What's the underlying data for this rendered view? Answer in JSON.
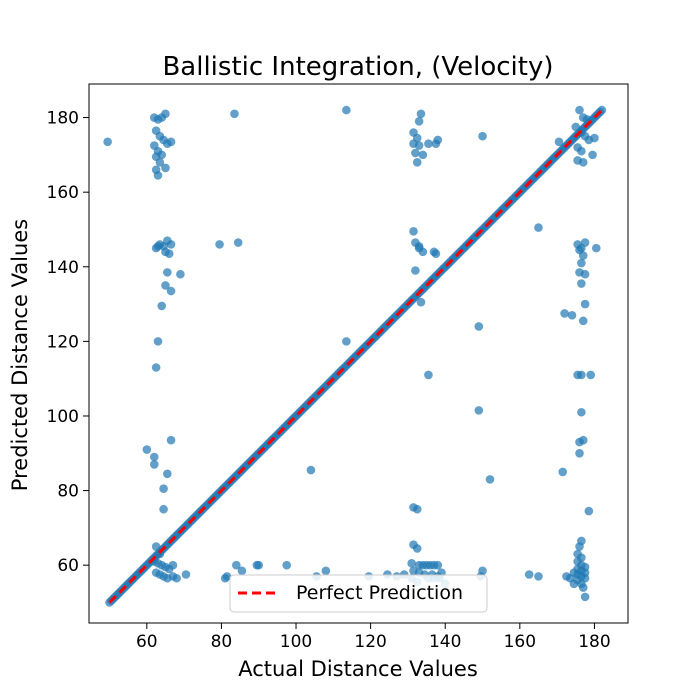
{
  "chart_data": {
    "type": "scatter",
    "title": "Ballistic Integration, (Velocity)",
    "xlabel": "Actual Distance Values",
    "ylabel": "Predicted Distance Values",
    "xlim": [
      44.5,
      189
    ],
    "ylim": [
      44.5,
      189
    ],
    "xticks": [
      60,
      80,
      100,
      120,
      140,
      160,
      180
    ],
    "yticks": [
      60,
      80,
      100,
      120,
      140,
      160,
      180
    ],
    "grid": false,
    "legend_position": "lower center",
    "point_color": "#1f77b4",
    "reference_line": {
      "name": "Perfect Prediction",
      "color": "#ff0000",
      "style": "dashed",
      "x": [
        50,
        182
      ],
      "y": [
        50,
        182
      ]
    },
    "diagonal_points": {
      "description_range": [
        50,
        182
      ],
      "step": 0.5
    },
    "points": [
      [
        49.5,
        173.5
      ],
      [
        62,
        180
      ],
      [
        63,
        179.5
      ],
      [
        64,
        180
      ],
      [
        65,
        181
      ],
      [
        62.5,
        176.5
      ],
      [
        63.5,
        175
      ],
      [
        64.5,
        174
      ],
      [
        65.5,
        173
      ],
      [
        66.5,
        173.5
      ],
      [
        62,
        172.5
      ],
      [
        63,
        171
      ],
      [
        64,
        170
      ],
      [
        62.5,
        169.5
      ],
      [
        63.5,
        168
      ],
      [
        62.5,
        166
      ],
      [
        63,
        164.5
      ],
      [
        65,
        166.5
      ],
      [
        62.5,
        145
      ],
      [
        63.5,
        146
      ],
      [
        64.5,
        145.5
      ],
      [
        65.5,
        147
      ],
      [
        66.5,
        146
      ],
      [
        65,
        144
      ],
      [
        66,
        143.5
      ],
      [
        63,
        145.5
      ],
      [
        65.5,
        138.5
      ],
      [
        69,
        138
      ],
      [
        65,
        135
      ],
      [
        66.5,
        133.5
      ],
      [
        64,
        129.5
      ],
      [
        63,
        120
      ],
      [
        62.5,
        113
      ],
      [
        60,
        91
      ],
      [
        62,
        89
      ],
      [
        62,
        87
      ],
      [
        66.5,
        93.5
      ],
      [
        65.5,
        84.5
      ],
      [
        64.5,
        80.5
      ],
      [
        64.5,
        75
      ],
      [
        62.5,
        65
      ],
      [
        63.5,
        63
      ],
      [
        62,
        61
      ],
      [
        63,
        60.5
      ],
      [
        64,
        60
      ],
      [
        65,
        59.5
      ],
      [
        66,
        59
      ],
      [
        62.5,
        58
      ],
      [
        63.5,
        57.5
      ],
      [
        64.5,
        57
      ],
      [
        65.5,
        56.5
      ],
      [
        67,
        57
      ],
      [
        68,
        56.5
      ],
      [
        70.5,
        57.5
      ],
      [
        67,
        60
      ],
      [
        79.5,
        146
      ],
      [
        84.5,
        146.5
      ],
      [
        83.5,
        181
      ],
      [
        81.5,
        57
      ],
      [
        81,
        56.5
      ],
      [
        84,
        60
      ],
      [
        85.5,
        58.5
      ],
      [
        89.5,
        60
      ],
      [
        90,
        60
      ],
      [
        97.5,
        60
      ],
      [
        104,
        85.5
      ],
      [
        105.5,
        57
      ],
      [
        108,
        58.5
      ],
      [
        113.5,
        182
      ],
      [
        113.5,
        120
      ],
      [
        119.5,
        57
      ],
      [
        124.5,
        57.5
      ],
      [
        127,
        57
      ],
      [
        129,
        57.5
      ],
      [
        133.5,
        181
      ],
      [
        133,
        179
      ],
      [
        131.5,
        176
      ],
      [
        132.5,
        174.5
      ],
      [
        131.5,
        173
      ],
      [
        133,
        172.5
      ],
      [
        132,
        170.5
      ],
      [
        134,
        170
      ],
      [
        132.5,
        168
      ],
      [
        135.5,
        173
      ],
      [
        137.5,
        173
      ],
      [
        138,
        174
      ],
      [
        131.5,
        149.5
      ],
      [
        132,
        146.5
      ],
      [
        133,
        145.5
      ],
      [
        133,
        145
      ],
      [
        134,
        144
      ],
      [
        137,
        144
      ],
      [
        137.5,
        143.5
      ],
      [
        132,
        139
      ],
      [
        133.5,
        130.5
      ],
      [
        135.5,
        111
      ],
      [
        131.5,
        75.5
      ],
      [
        132.5,
        75
      ],
      [
        131.5,
        65.5
      ],
      [
        132.5,
        64.5
      ],
      [
        131,
        60.5
      ],
      [
        133,
        60
      ],
      [
        134,
        60
      ],
      [
        135,
        60
      ],
      [
        136,
        60
      ],
      [
        137,
        60
      ],
      [
        138,
        60
      ],
      [
        131.5,
        58.5
      ],
      [
        133,
        58
      ],
      [
        134.5,
        57.5
      ],
      [
        136.5,
        57.5
      ],
      [
        138,
        57
      ],
      [
        131,
        56.5
      ],
      [
        135.5,
        56.5
      ],
      [
        137,
        56.5
      ],
      [
        138.5,
        56.5
      ],
      [
        132.5,
        55.5
      ],
      [
        140,
        55
      ],
      [
        139,
        58
      ],
      [
        150,
        175
      ],
      [
        149,
        124
      ],
      [
        149,
        101.5
      ],
      [
        152,
        83
      ],
      [
        150,
        58.5
      ],
      [
        149.5,
        57
      ],
      [
        162.5,
        57.5
      ],
      [
        165,
        150.5
      ],
      [
        165,
        57
      ],
      [
        172,
        127.5
      ],
      [
        171.5,
        85
      ],
      [
        172.5,
        57
      ],
      [
        173.5,
        56.5
      ],
      [
        174.5,
        58
      ],
      [
        170.5,
        173.5
      ],
      [
        175,
        177.5
      ],
      [
        176,
        182
      ],
      [
        177,
        180
      ],
      [
        178,
        179.5
      ],
      [
        176.5,
        176
      ],
      [
        177.5,
        175
      ],
      [
        175.5,
        172
      ],
      [
        176.5,
        171
      ],
      [
        175.5,
        168.5
      ],
      [
        177,
        168
      ],
      [
        178.5,
        174
      ],
      [
        180,
        174.5
      ],
      [
        179.5,
        170
      ],
      [
        175.5,
        146
      ],
      [
        176.5,
        145
      ],
      [
        177.5,
        146.5
      ],
      [
        176,
        144.5
      ],
      [
        177,
        143
      ],
      [
        176.5,
        141
      ],
      [
        180.5,
        145
      ],
      [
        176,
        138.5
      ],
      [
        177.5,
        138
      ],
      [
        176.5,
        135.5
      ],
      [
        177.5,
        130
      ],
      [
        177,
        125.5
      ],
      [
        174,
        127
      ],
      [
        175.5,
        111
      ],
      [
        176.5,
        111
      ],
      [
        179,
        111
      ],
      [
        176.5,
        101
      ],
      [
        176,
        93
      ],
      [
        177,
        93.5
      ],
      [
        176,
        90
      ],
      [
        178.5,
        74.5
      ],
      [
        176.5,
        66.5
      ],
      [
        176,
        65
      ],
      [
        175.5,
        63
      ],
      [
        176.5,
        62
      ],
      [
        175.5,
        61
      ],
      [
        176.5,
        60
      ],
      [
        177.5,
        59.5
      ],
      [
        175.5,
        59
      ],
      [
        176.5,
        58.5
      ],
      [
        177.5,
        58
      ],
      [
        175.5,
        57.5
      ],
      [
        176.5,
        57
      ],
      [
        177.5,
        56.5
      ],
      [
        175.5,
        56
      ],
      [
        176.5,
        55
      ],
      [
        177,
        54
      ],
      [
        174.5,
        55
      ],
      [
        177.5,
        51.5
      ]
    ]
  }
}
